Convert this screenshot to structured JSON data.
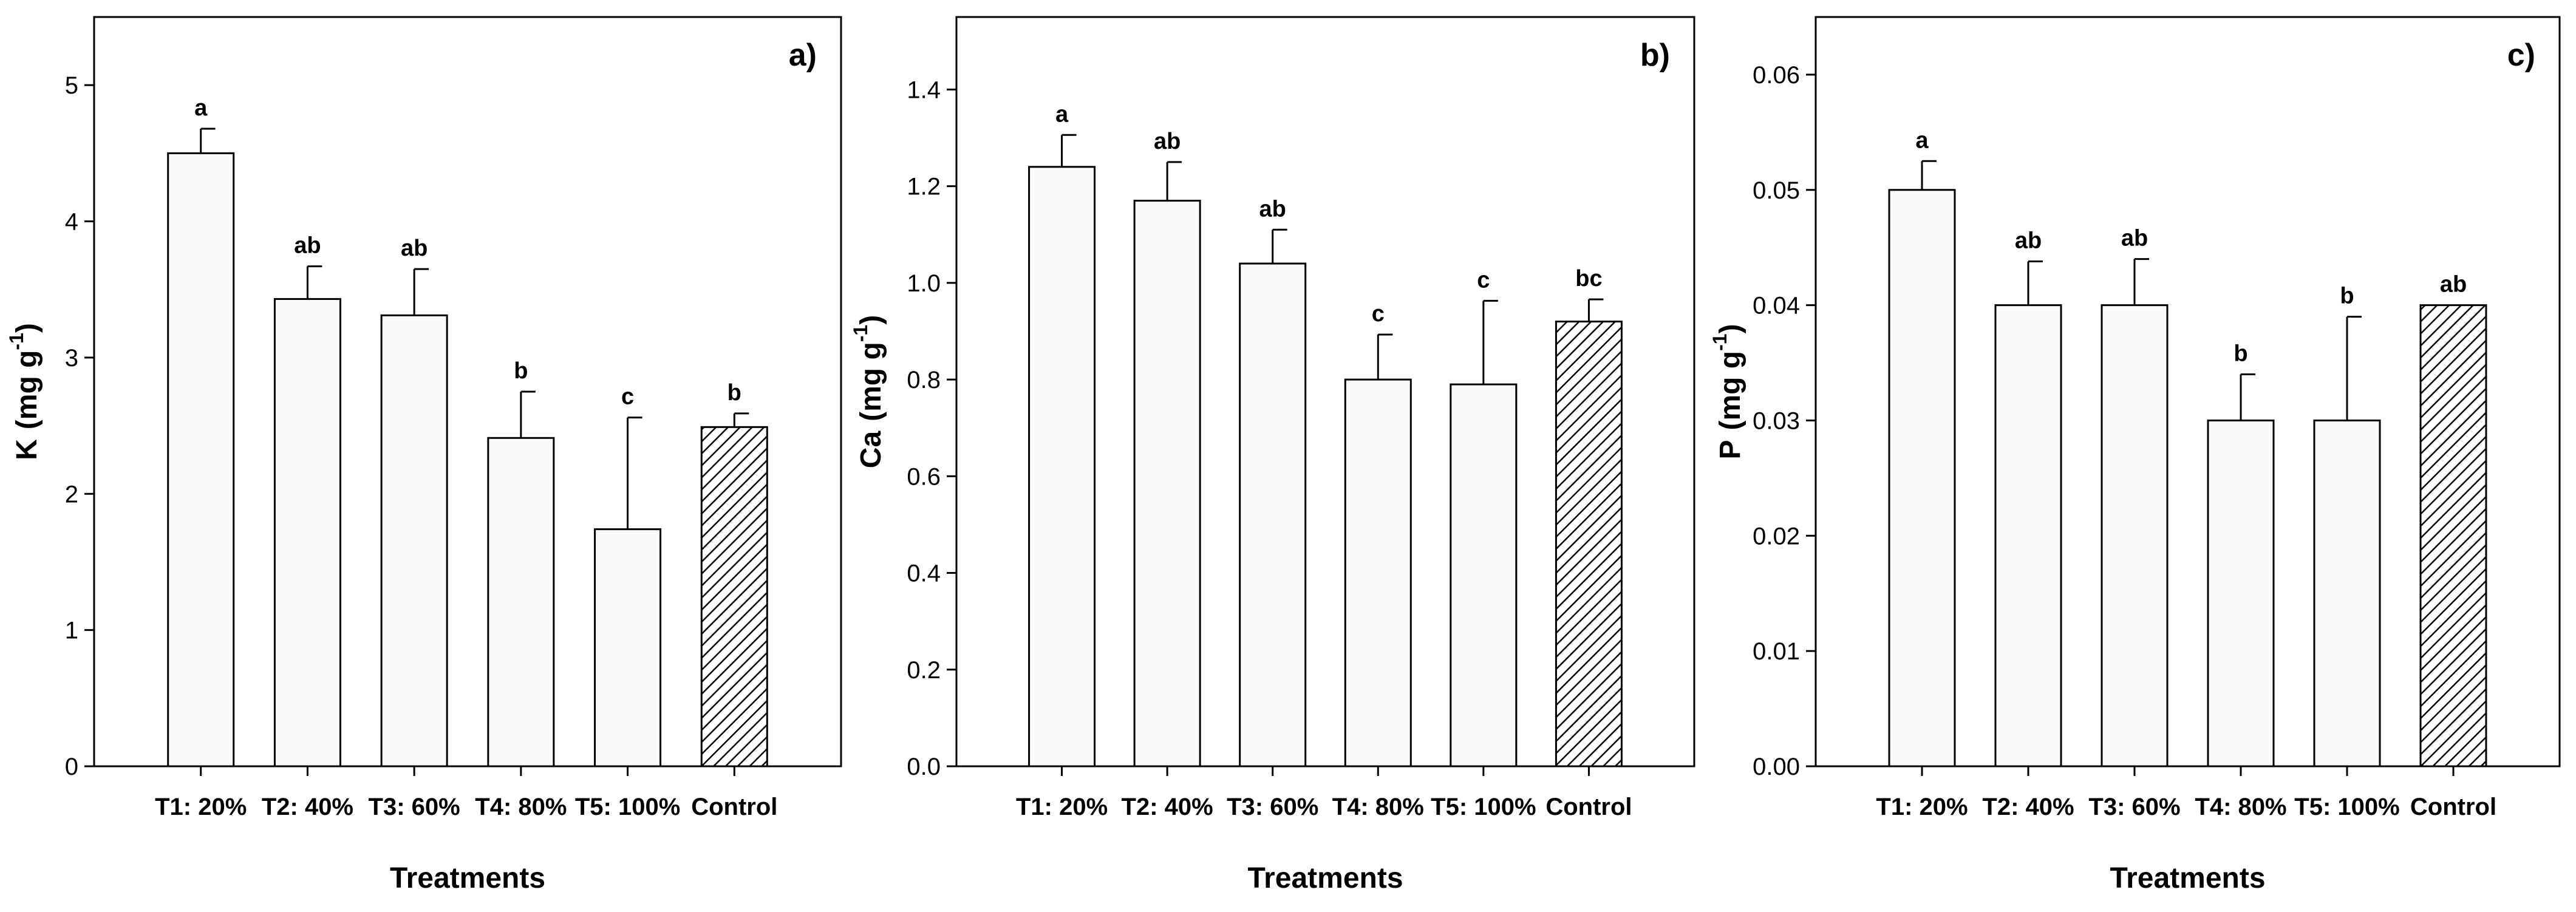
{
  "chart_data": [
    {
      "type": "bar",
      "panel_label": "a)",
      "categories": [
        "T1: 20%",
        "T2: 40%",
        "T3: 60%",
        "T4: 80%",
        "T5: 100%",
        "Control"
      ],
      "values": [
        4.5,
        3.43,
        3.31,
        2.41,
        1.74,
        2.49
      ],
      "errors": [
        0.18,
        0.24,
        0.34,
        0.34,
        0.82,
        0.1
      ],
      "significance": [
        "a",
        "ab",
        "ab",
        "b",
        "c",
        "b"
      ],
      "hatched": [
        false,
        false,
        false,
        false,
        false,
        true
      ],
      "xlabel": "Treatments",
      "ylabel_main": "K",
      "ylabel_unit": "(mg g",
      "ylabel_exp": "-1",
      "ylabel_close": ")",
      "ylim": [
        0,
        5.5
      ],
      "yticks": [
        0,
        1,
        2,
        3,
        4,
        5
      ],
      "ytick_labels": [
        "0",
        "1",
        "2",
        "3",
        "4",
        "5"
      ],
      "grid": false,
      "legend": "none"
    },
    {
      "type": "bar",
      "panel_label": "b)",
      "categories": [
        "T1: 20%",
        "T2: 40%",
        "T3: 60%",
        "T4: 80%",
        "T5: 100%",
        "Control"
      ],
      "values": [
        1.24,
        1.17,
        1.04,
        0.8,
        0.79,
        0.92
      ],
      "errors": [
        0.066,
        0.08,
        0.07,
        0.093,
        0.173,
        0.046
      ],
      "significance": [
        "a",
        "ab",
        "ab",
        "c",
        "c",
        "bc"
      ],
      "hatched": [
        false,
        false,
        false,
        false,
        false,
        true
      ],
      "xlabel": "Treatments",
      "ylabel_main": "Ca",
      "ylabel_unit": "(mg g",
      "ylabel_exp": "-1",
      "ylabel_close": ")",
      "ylim": [
        0,
        1.55
      ],
      "yticks": [
        0,
        0.2,
        0.4,
        0.6,
        0.8,
        1.0,
        1.2,
        1.4
      ],
      "ytick_labels": [
        "0.0",
        "0.2",
        "0.4",
        "0.6",
        "0.8",
        "1.0",
        "1.2",
        "1.4"
      ],
      "grid": false,
      "legend": "none"
    },
    {
      "type": "bar",
      "panel_label": "c)",
      "categories": [
        "T1: 20%",
        "T2: 40%",
        "T3: 60%",
        "T4: 80%",
        "T5: 100%",
        "Control"
      ],
      "values": [
        0.05,
        0.04,
        0.04,
        0.03,
        0.03,
        0.04
      ],
      "errors": [
        0.0025,
        0.0038,
        0.004,
        0.004,
        0.009,
        0.0
      ],
      "significance": [
        "a",
        "ab",
        "ab",
        "b",
        "b",
        "ab"
      ],
      "hatched": [
        false,
        false,
        false,
        false,
        false,
        true
      ],
      "xlabel": "Treatments",
      "ylabel_main": "P",
      "ylabel_unit": "(mg g",
      "ylabel_exp": "-1",
      "ylabel_close": ")",
      "ylim": [
        0,
        0.065
      ],
      "yticks": [
        0,
        0.01,
        0.02,
        0.03,
        0.04,
        0.05,
        0.06
      ],
      "ytick_labels": [
        "0.00",
        "0.01",
        "0.02",
        "0.03",
        "0.04",
        "0.05",
        "0.06"
      ],
      "grid": false,
      "legend": "none"
    }
  ]
}
